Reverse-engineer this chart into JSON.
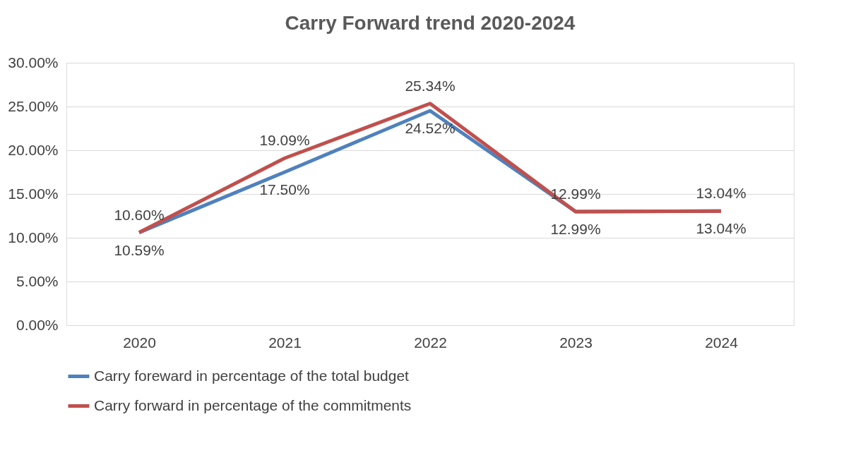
{
  "chart_data": {
    "type": "line",
    "title": "Carry Forward trend 2020-2024",
    "categories": [
      "2020",
      "2021",
      "2022",
      "2023",
      "2024"
    ],
    "series": [
      {
        "name": "Carry foreward in percentage of the total budget",
        "color": "#4f81bd",
        "values": [
          10.59,
          17.5,
          24.52,
          12.99,
          13.04
        ],
        "value_labels": [
          "10.59%",
          "17.50%",
          "24.52%",
          "12.99%",
          "13.04%"
        ]
      },
      {
        "name": "Carry forward in percentage of the commitments",
        "color": "#c0504d",
        "values": [
          10.6,
          19.09,
          25.34,
          12.99,
          13.04
        ],
        "value_labels": [
          "10.60%",
          "19.09%",
          "25.34%",
          "12.99%",
          "13.04%"
        ]
      }
    ],
    "ylim": [
      0,
      30
    ],
    "yticks": [
      {
        "value": 0,
        "label": "0.00%"
      },
      {
        "value": 5,
        "label": "5.00%"
      },
      {
        "value": 10,
        "label": "10.00%"
      },
      {
        "value": 15,
        "label": "15.00%"
      },
      {
        "value": 20,
        "label": "20.00%"
      },
      {
        "value": 25,
        "label": "25.00%"
      },
      {
        "value": 30,
        "label": "30.00%"
      }
    ],
    "grid": "y",
    "legend": "bottom",
    "marker": "none",
    "line_style": "solid"
  }
}
